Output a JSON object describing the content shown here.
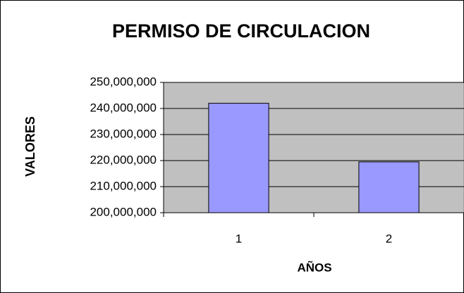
{
  "chart_data": {
    "type": "bar",
    "title": "PERMISO DE CIRCULACION",
    "x_label": "AÑOS",
    "y_label": "VALORES",
    "categories": [
      "1",
      "2"
    ],
    "values": [
      242000000,
      219500000
    ],
    "color": "#9999ff",
    "ylim": [
      200000000,
      250000000
    ],
    "yticks": [
      {
        "value": 200000000,
        "label": "200,000,000"
      },
      {
        "value": 210000000,
        "label": "210,000,000"
      },
      {
        "value": 220000000,
        "label": "220,000,000"
      },
      {
        "value": 230000000,
        "label": "230,000,000"
      },
      {
        "value": 240000000,
        "label": "240,000,000"
      },
      {
        "value": 250000000,
        "label": "250,000,000"
      }
    ],
    "grid": true
  }
}
